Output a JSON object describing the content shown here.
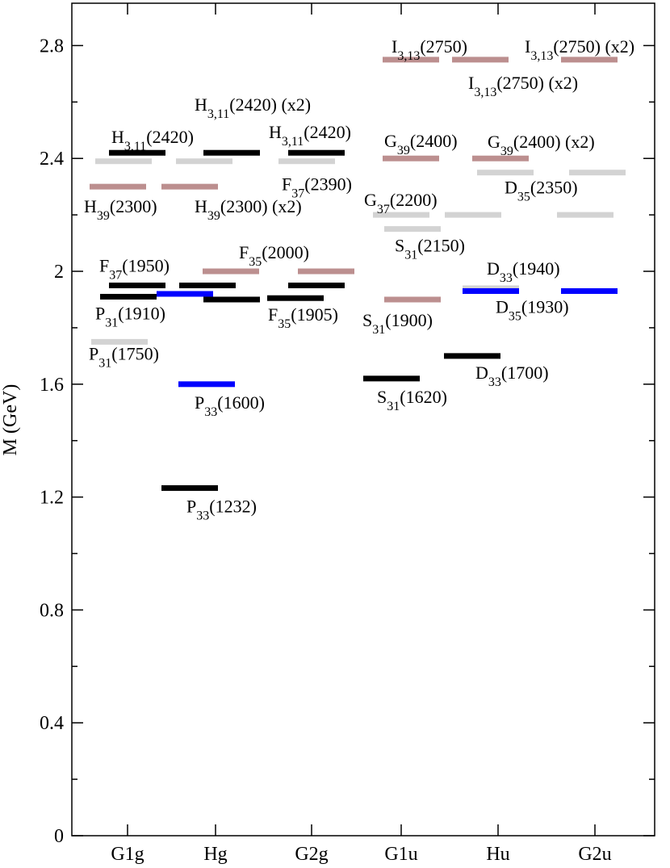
{
  "chart_data": {
    "type": "scatter",
    "title": "",
    "xlabel": "",
    "ylabel": "M (GeV)",
    "ylim": [
      0,
      2.95
    ],
    "yticks": [
      "0",
      "0.4",
      "0.8",
      "1.2",
      "1.6",
      "2",
      "2.4",
      "2.8"
    ],
    "categories": [
      "G1g",
      "Hg",
      "G2g",
      "G1u",
      "Hu",
      "G2u"
    ],
    "colors": {
      "black": "#000000",
      "gray": "#d3d3d3",
      "brown": "#bc8f8f",
      "blue": "#0000ff"
    },
    "levels": [
      {
        "category": "G1g",
        "mass": 2.42,
        "color": "black",
        "label": "H",
        "sub": "3,11",
        "mass_label": "(2420)",
        "suffix": ""
      },
      {
        "category": "G1g",
        "mass": 2.39,
        "color": "gray",
        "label": "",
        "sub": "",
        "mass_label": "",
        "suffix": ""
      },
      {
        "category": "G1g",
        "mass": 2.3,
        "color": "brown",
        "label": "H",
        "sub": "39",
        "mass_label": "(2300)",
        "suffix": ""
      },
      {
        "category": "G1g",
        "mass": 1.95,
        "color": "black",
        "label": "F",
        "sub": "37",
        "mass_label": "(1950)",
        "suffix": ""
      },
      {
        "category": "G1g",
        "mass": 1.91,
        "color": "black",
        "label": "P",
        "sub": "31",
        "mass_label": "(1910)",
        "suffix": ""
      },
      {
        "category": "G1g",
        "mass": 1.75,
        "color": "gray",
        "label": "P",
        "sub": "31",
        "mass_label": "(1750)",
        "suffix": ""
      },
      {
        "category": "Hg",
        "mass": 2.42,
        "color": "black",
        "label": "H",
        "sub": "3,11",
        "mass_label": "(2420)",
        "suffix": " (x2)"
      },
      {
        "category": "Hg",
        "mass": 2.39,
        "color": "gray",
        "label": "",
        "sub": "",
        "mass_label": "",
        "suffix": ""
      },
      {
        "category": "Hg",
        "mass": 2.3,
        "color": "brown",
        "label": "H",
        "sub": "39",
        "mass_label": "(2300)",
        "suffix": " (x2)"
      },
      {
        "category": "Hg",
        "mass": 2.0,
        "color": "brown",
        "label": "F",
        "sub": "35",
        "mass_label": "(2000)",
        "suffix": ""
      },
      {
        "category": "Hg",
        "mass": 1.95,
        "color": "black",
        "label": "",
        "sub": "",
        "mass_label": "",
        "suffix": ""
      },
      {
        "category": "Hg",
        "mass": 1.92,
        "color": "blue",
        "label": "",
        "sub": "",
        "mass_label": "",
        "suffix": ""
      },
      {
        "category": "Hg",
        "mass": 1.9,
        "color": "black",
        "label": "",
        "sub": "",
        "mass_label": "",
        "suffix": ""
      },
      {
        "category": "Hg",
        "mass": 1.6,
        "color": "blue",
        "label": "P",
        "sub": "33",
        "mass_label": "(1600)",
        "suffix": ""
      },
      {
        "category": "Hg",
        "mass": 1.232,
        "color": "black",
        "label": "P",
        "sub": "33",
        "mass_label": "(1232)",
        "suffix": ""
      },
      {
        "category": "G2g",
        "mass": 2.42,
        "color": "black",
        "label": "H",
        "sub": "3,11",
        "mass_label": "(2420)",
        "suffix": ""
      },
      {
        "category": "G2g",
        "mass": 2.39,
        "color": "gray",
        "label": "F",
        "sub": "37",
        "mass_label": "(2390)",
        "suffix": ""
      },
      {
        "category": "G2g",
        "mass": 2.0,
        "color": "brown",
        "label": "",
        "sub": "",
        "mass_label": "",
        "suffix": ""
      },
      {
        "category": "G2g",
        "mass": 1.95,
        "color": "black",
        "label": "",
        "sub": "",
        "mass_label": "",
        "suffix": ""
      },
      {
        "category": "G2g",
        "mass": 1.905,
        "color": "black",
        "label": "F",
        "sub": "35",
        "mass_label": "(1905)",
        "suffix": ""
      },
      {
        "category": "G1u",
        "mass": 2.75,
        "color": "brown",
        "label": "I",
        "sub": "3,13",
        "mass_label": "(2750)",
        "suffix": ""
      },
      {
        "category": "G1u",
        "mass": 2.4,
        "color": "brown",
        "label": "G",
        "sub": "39",
        "mass_label": "(2400)",
        "suffix": ""
      },
      {
        "category": "G1u",
        "mass": 2.2,
        "color": "gray",
        "label": "G",
        "sub": "37",
        "mass_label": "(2200)",
        "suffix": ""
      },
      {
        "category": "G1u",
        "mass": 2.15,
        "color": "gray",
        "label": "S",
        "sub": "31",
        "mass_label": "(2150)",
        "suffix": ""
      },
      {
        "category": "G1u",
        "mass": 1.9,
        "color": "brown",
        "label": "S",
        "sub": "31",
        "mass_label": "(1900)",
        "suffix": ""
      },
      {
        "category": "G1u",
        "mass": 1.62,
        "color": "black",
        "label": "S",
        "sub": "31",
        "mass_label": "(1620)",
        "suffix": ""
      },
      {
        "category": "Hu",
        "mass": 2.75,
        "color": "brown",
        "label": "I",
        "sub": "3,13",
        "mass_label": "(2750)",
        "suffix": " (x2)"
      },
      {
        "category": "Hu",
        "mass": 2.4,
        "color": "brown",
        "label": "G",
        "sub": "39",
        "mass_label": "(2400)",
        "suffix": " (x2)"
      },
      {
        "category": "Hu",
        "mass": 2.35,
        "color": "gray",
        "label": "D",
        "sub": "35",
        "mass_label": "(2350)",
        "suffix": ""
      },
      {
        "category": "Hu",
        "mass": 2.2,
        "color": "gray",
        "label": "",
        "sub": "",
        "mass_label": "",
        "suffix": ""
      },
      {
        "category": "Hu",
        "mass": 1.94,
        "color": "gray",
        "label": "D",
        "sub": "33",
        "mass_label": "(1940)",
        "suffix": ""
      },
      {
        "category": "Hu",
        "mass": 1.93,
        "color": "blue",
        "label": "D",
        "sub": "35",
        "mass_label": "(1930)",
        "suffix": ""
      },
      {
        "category": "Hu",
        "mass": 1.7,
        "color": "black",
        "label": "D",
        "sub": "33",
        "mass_label": "(1700)",
        "suffix": ""
      },
      {
        "category": "G2u",
        "mass": 2.75,
        "color": "brown",
        "label": "I",
        "sub": "3,13",
        "mass_label": "(2750)",
        "suffix": " (x2)"
      },
      {
        "category": "G2u",
        "mass": 2.35,
        "color": "gray",
        "label": "",
        "sub": "",
        "mass_label": "",
        "suffix": ""
      },
      {
        "category": "G2u",
        "mass": 2.2,
        "color": "gray",
        "label": "",
        "sub": "",
        "mass_label": "",
        "suffix": ""
      },
      {
        "category": "G2u",
        "mass": 1.93,
        "color": "blue",
        "label": "",
        "sub": "",
        "mass_label": "",
        "suffix": ""
      }
    ]
  }
}
